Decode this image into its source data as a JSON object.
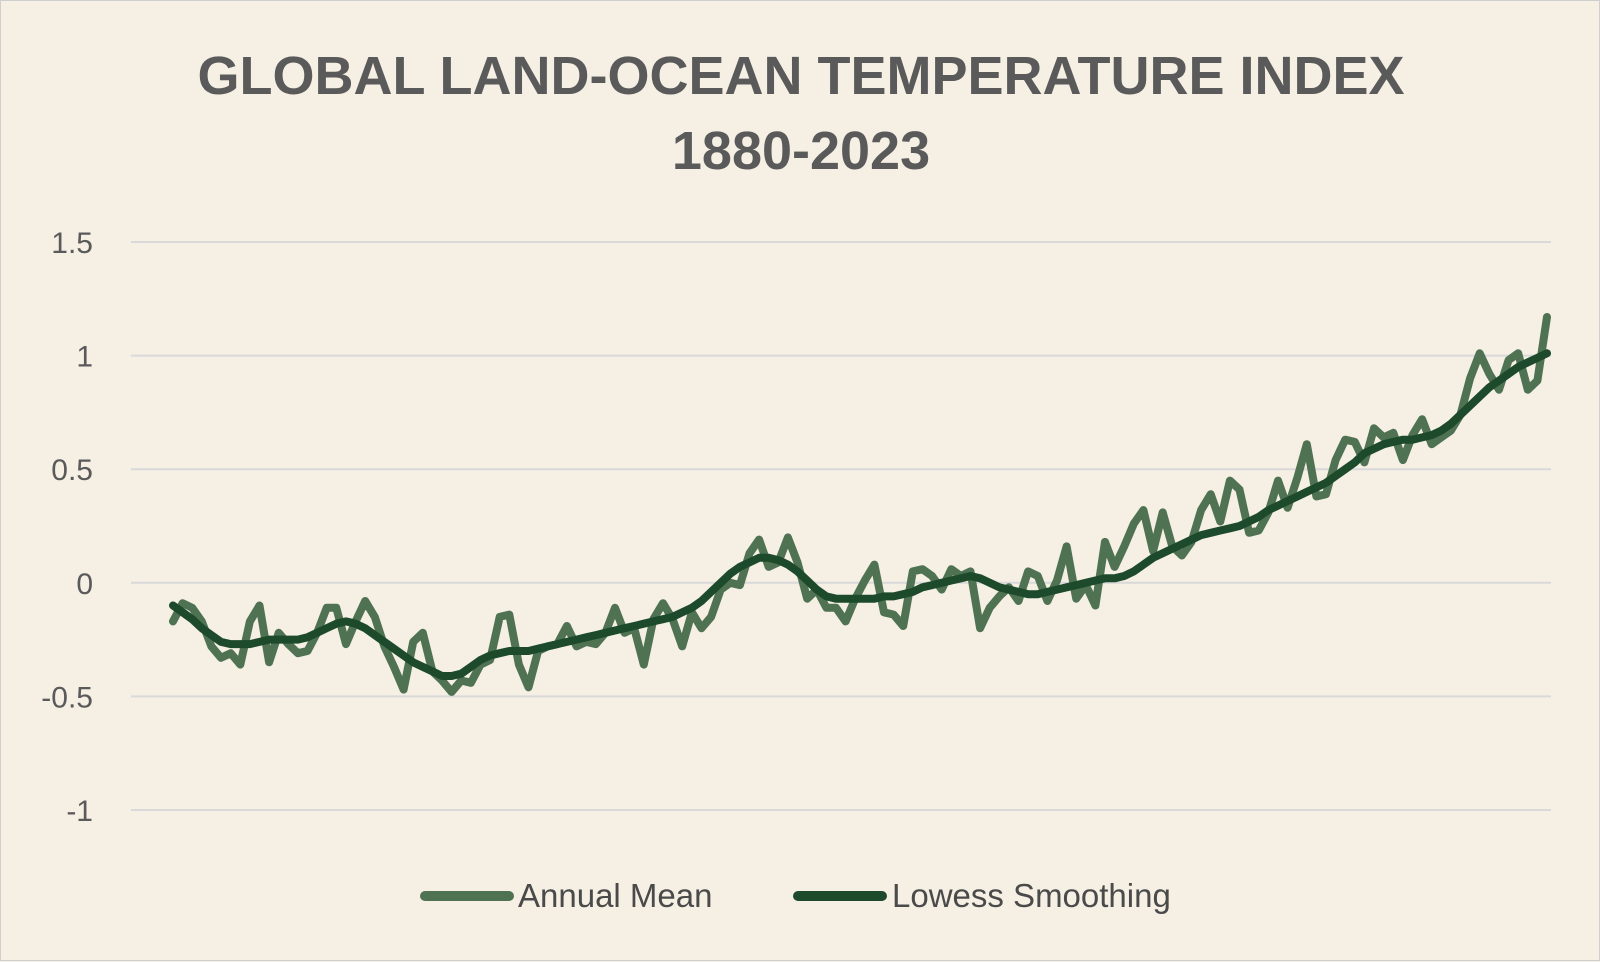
{
  "chart_data": {
    "type": "line",
    "title": "GLOBAL LAND-OCEAN TEMPERATURE INDEX",
    "subtitle": "1880-2023",
    "ylim": [
      -1,
      1.5
    ],
    "ytick_labels": [
      "1.5",
      "1",
      "0.5",
      "0",
      "-0.5",
      "-1"
    ],
    "ytick_values": [
      1.5,
      1,
      0.5,
      0,
      -0.5,
      -1
    ],
    "xlim": [
      1880,
      2023
    ],
    "grid": true,
    "legend_position": "bottom",
    "colors": {
      "background": "#f5efe4",
      "annual_mean": "#4f7253",
      "lowess": "#1d4a2b",
      "grid": "#d9d9d9"
    },
    "x": [
      1880,
      1881,
      1882,
      1883,
      1884,
      1885,
      1886,
      1887,
      1888,
      1889,
      1890,
      1891,
      1892,
      1893,
      1894,
      1895,
      1896,
      1897,
      1898,
      1899,
      1900,
      1901,
      1902,
      1903,
      1904,
      1905,
      1906,
      1907,
      1908,
      1909,
      1910,
      1911,
      1912,
      1913,
      1914,
      1915,
      1916,
      1917,
      1918,
      1919,
      1920,
      1921,
      1922,
      1923,
      1924,
      1925,
      1926,
      1927,
      1928,
      1929,
      1930,
      1931,
      1932,
      1933,
      1934,
      1935,
      1936,
      1937,
      1938,
      1939,
      1940,
      1941,
      1942,
      1943,
      1944,
      1945,
      1946,
      1947,
      1948,
      1949,
      1950,
      1951,
      1952,
      1953,
      1954,
      1955,
      1956,
      1957,
      1958,
      1959,
      1960,
      1961,
      1962,
      1963,
      1964,
      1965,
      1966,
      1967,
      1968,
      1969,
      1970,
      1971,
      1972,
      1973,
      1974,
      1975,
      1976,
      1977,
      1978,
      1979,
      1980,
      1981,
      1982,
      1983,
      1984,
      1985,
      1986,
      1987,
      1988,
      1989,
      1990,
      1991,
      1992,
      1993,
      1994,
      1995,
      1996,
      1997,
      1998,
      1999,
      2000,
      2001,
      2002,
      2003,
      2004,
      2005,
      2006,
      2007,
      2008,
      2009,
      2010,
      2011,
      2012,
      2013,
      2014,
      2015,
      2016,
      2017,
      2018,
      2019,
      2020,
      2021,
      2022,
      2023
    ],
    "series": [
      {
        "name": "Annual Mean",
        "values": [
          -0.17,
          -0.09,
          -0.11,
          -0.17,
          -0.28,
          -0.33,
          -0.31,
          -0.36,
          -0.17,
          -0.1,
          -0.35,
          -0.22,
          -0.27,
          -0.31,
          -0.3,
          -0.22,
          -0.11,
          -0.11,
          -0.27,
          -0.17,
          -0.08,
          -0.15,
          -0.28,
          -0.37,
          -0.47,
          -0.26,
          -0.22,
          -0.39,
          -0.43,
          -0.48,
          -0.43,
          -0.44,
          -0.36,
          -0.34,
          -0.15,
          -0.14,
          -0.36,
          -0.46,
          -0.3,
          -0.28,
          -0.27,
          -0.19,
          -0.28,
          -0.26,
          -0.27,
          -0.22,
          -0.11,
          -0.22,
          -0.2,
          -0.36,
          -0.16,
          -0.09,
          -0.16,
          -0.28,
          -0.13,
          -0.2,
          -0.15,
          -0.03,
          0.0,
          -0.01,
          0.13,
          0.19,
          0.07,
          0.09,
          0.2,
          0.09,
          -0.07,
          -0.03,
          -0.11,
          -0.11,
          -0.17,
          -0.07,
          0.01,
          0.08,
          -0.13,
          -0.14,
          -0.19,
          0.05,
          0.06,
          0.03,
          -0.03,
          0.06,
          0.03,
          0.05,
          -0.2,
          -0.11,
          -0.06,
          -0.02,
          -0.08,
          0.05,
          0.03,
          -0.08,
          0.01,
          0.16,
          -0.07,
          -0.01,
          -0.1,
          0.18,
          0.07,
          0.16,
          0.26,
          0.32,
          0.14,
          0.31,
          0.16,
          0.12,
          0.18,
          0.32,
          0.39,
          0.27,
          0.45,
          0.41,
          0.22,
          0.23,
          0.31,
          0.45,
          0.33,
          0.46,
          0.61,
          0.38,
          0.39,
          0.54,
          0.63,
          0.62,
          0.53,
          0.68,
          0.64,
          0.66,
          0.54,
          0.65,
          0.72,
          0.61,
          0.64,
          0.67,
          0.74,
          0.9,
          1.01,
          0.92,
          0.85,
          0.98,
          1.01,
          0.85,
          0.89,
          1.17
        ]
      },
      {
        "name": "Lowess Smoothing",
        "values": [
          -0.1,
          -0.13,
          -0.16,
          -0.2,
          -0.23,
          -0.26,
          -0.27,
          -0.27,
          -0.27,
          -0.26,
          -0.25,
          -0.25,
          -0.25,
          -0.25,
          -0.24,
          -0.22,
          -0.2,
          -0.18,
          -0.17,
          -0.18,
          -0.2,
          -0.23,
          -0.26,
          -0.29,
          -0.32,
          -0.35,
          -0.37,
          -0.39,
          -0.41,
          -0.41,
          -0.4,
          -0.37,
          -0.34,
          -0.32,
          -0.31,
          -0.3,
          -0.3,
          -0.3,
          -0.29,
          -0.28,
          -0.27,
          -0.26,
          -0.25,
          -0.24,
          -0.23,
          -0.22,
          -0.21,
          -0.2,
          -0.19,
          -0.18,
          -0.17,
          -0.16,
          -0.15,
          -0.13,
          -0.11,
          -0.08,
          -0.04,
          0.0,
          0.04,
          0.07,
          0.09,
          0.11,
          0.11,
          0.1,
          0.08,
          0.05,
          0.01,
          -0.03,
          -0.06,
          -0.07,
          -0.07,
          -0.07,
          -0.07,
          -0.07,
          -0.06,
          -0.06,
          -0.05,
          -0.04,
          -0.02,
          -0.01,
          0.0,
          0.01,
          0.02,
          0.03,
          0.02,
          0.0,
          -0.02,
          -0.03,
          -0.04,
          -0.05,
          -0.05,
          -0.04,
          -0.03,
          -0.02,
          -0.01,
          0.0,
          0.01,
          0.02,
          0.02,
          0.03,
          0.05,
          0.08,
          0.11,
          0.13,
          0.15,
          0.17,
          0.19,
          0.21,
          0.22,
          0.23,
          0.24,
          0.25,
          0.27,
          0.29,
          0.32,
          0.34,
          0.36,
          0.38,
          0.4,
          0.42,
          0.44,
          0.47,
          0.5,
          0.53,
          0.57,
          0.59,
          0.61,
          0.62,
          0.63,
          0.63,
          0.64,
          0.65,
          0.67,
          0.7,
          0.74,
          0.78,
          0.82,
          0.86,
          0.89,
          0.92,
          0.95,
          0.97,
          0.99,
          1.01
        ]
      }
    ]
  }
}
